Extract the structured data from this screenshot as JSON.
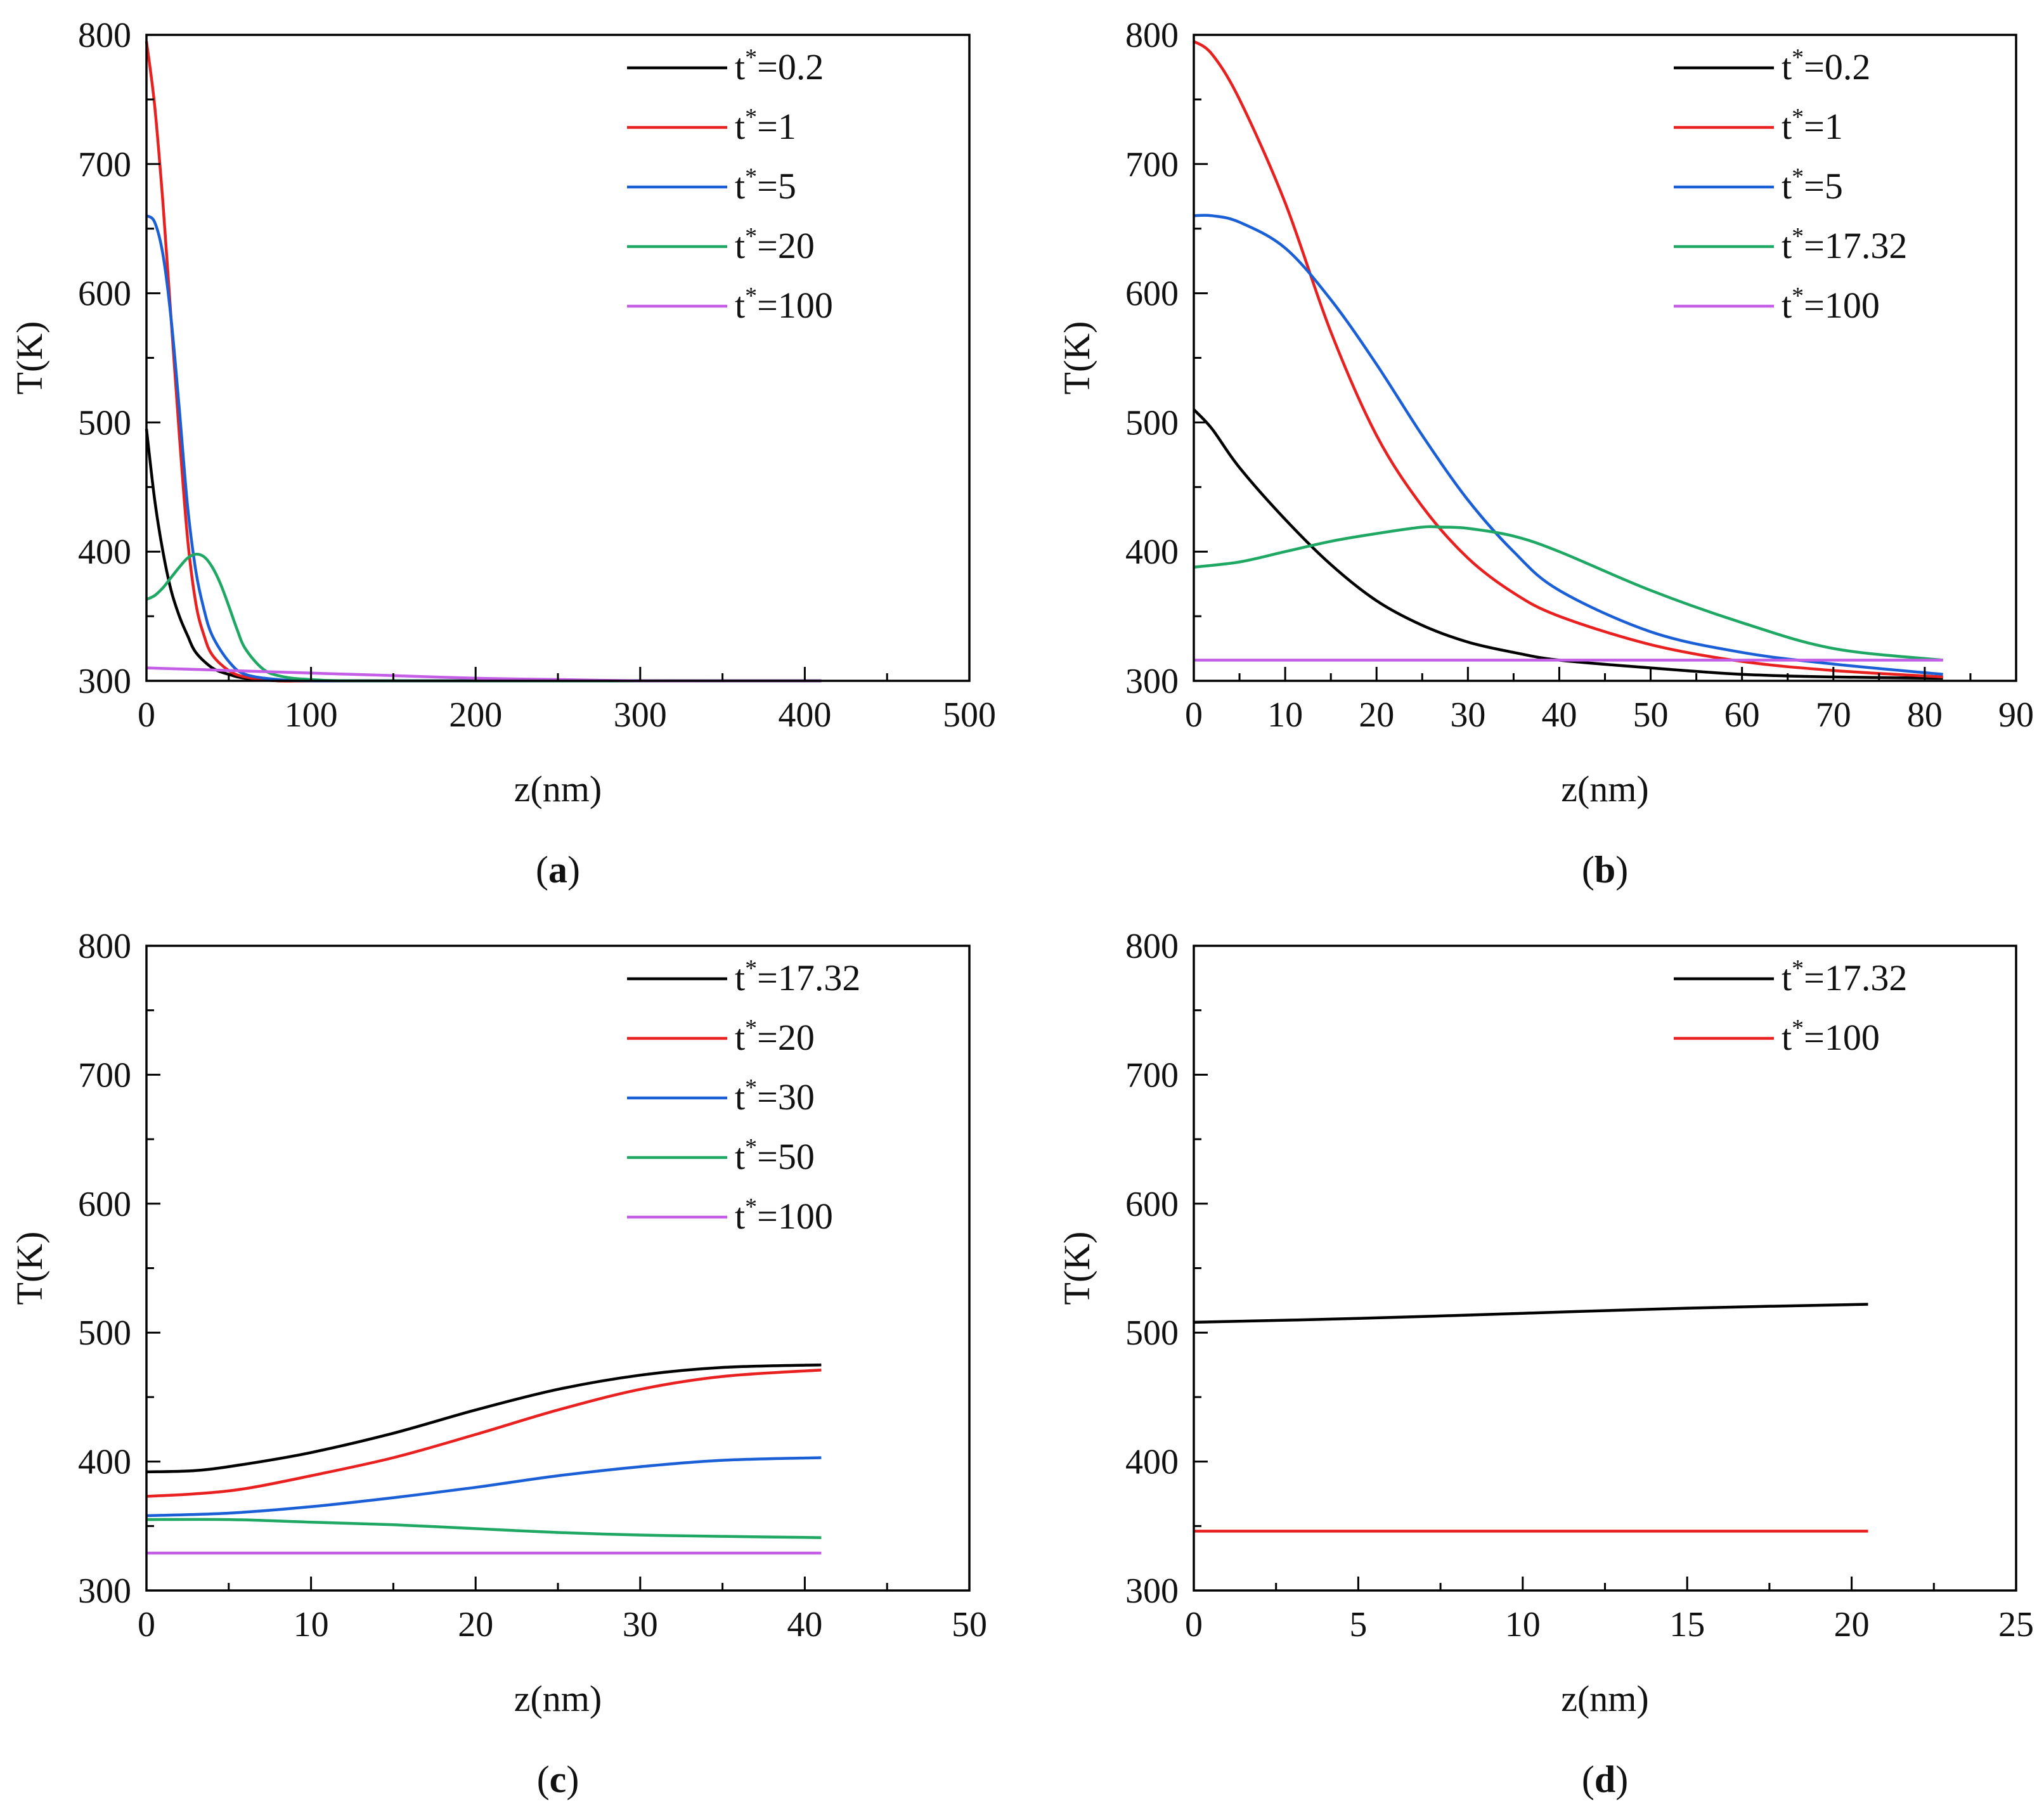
{
  "chart_data": [
    {
      "id": "a",
      "type": "line",
      "caption_open": "(",
      "caption_letter": "a",
      "caption_close": ")",
      "xlabel": "z(nm)",
      "ylabel": "T(K)",
      "xlim": [
        0,
        500
      ],
      "ylim": [
        300,
        800
      ],
      "xticks": [
        0,
        100,
        200,
        300,
        400,
        500
      ],
      "yticks": [
        300,
        400,
        500,
        600,
        700,
        800
      ],
      "legend_position": "top-right",
      "series": [
        {
          "name": "t*=0.2",
          "legend_base": "t",
          "legend_sup": "*",
          "legend_value": "=0.2",
          "color": "#000000",
          "x": [
            0,
            5,
            10,
            15,
            20,
            25,
            30,
            40,
            50,
            60,
            80,
            100,
            150,
            410
          ],
          "y": [
            495,
            440,
            400,
            370,
            350,
            335,
            322,
            310,
            305,
            302,
            300,
            300,
            300,
            300
          ]
        },
        {
          "name": "t*=1",
          "legend_base": "t",
          "legend_sup": "*",
          "legend_value": "=1",
          "color": "#e8201f",
          "x": [
            0,
            5,
            10,
            15,
            20,
            25,
            30,
            35,
            40,
            50,
            60,
            80,
            100,
            150,
            410
          ],
          "y": [
            795,
            745,
            670,
            580,
            490,
            410,
            360,
            335,
            320,
            308,
            303,
            300,
            300,
            300,
            300
          ]
        },
        {
          "name": "t*=5",
          "legend_base": "t",
          "legend_sup": "*",
          "legend_value": "=5",
          "color": "#1a5fd6",
          "x": [
            0,
            5,
            10,
            15,
            20,
            25,
            30,
            35,
            40,
            50,
            60,
            80,
            100,
            150,
            410
          ],
          "y": [
            660,
            655,
            630,
            580,
            510,
            435,
            385,
            355,
            335,
            315,
            305,
            301,
            300,
            300,
            300
          ]
        },
        {
          "name": "t*=20",
          "legend_base": "t",
          "legend_sup": "*",
          "legend_value": "=20",
          "color": "#1fa863",
          "x": [
            0,
            5,
            10,
            15,
            20,
            25,
            30,
            35,
            40,
            45,
            50,
            55,
            60,
            70,
            80,
            100,
            150,
            410
          ],
          "y": [
            363,
            366,
            372,
            380,
            388,
            395,
            398,
            396,
            388,
            375,
            358,
            340,
            325,
            310,
            304,
            301,
            300,
            300
          ]
        },
        {
          "name": "t*=100",
          "legend_base": "t",
          "legend_sup": "*",
          "legend_value": "=100",
          "color": "#c45ee6",
          "x": [
            0,
            50,
            100,
            150,
            200,
            250,
            300,
            350,
            410
          ],
          "y": [
            310,
            308,
            306,
            304,
            302,
            301,
            300,
            300,
            300
          ]
        }
      ]
    },
    {
      "id": "b",
      "type": "line",
      "caption_open": "(",
      "caption_letter": "b",
      "caption_close": ")",
      "xlabel": "z(nm)",
      "ylabel": "T(K)",
      "xlim": [
        0,
        90
      ],
      "ylim": [
        300,
        800
      ],
      "xticks": [
        0,
        10,
        20,
        30,
        40,
        50,
        60,
        70,
        80,
        90
      ],
      "yticks": [
        300,
        400,
        500,
        600,
        700,
        800
      ],
      "legend_position": "top-right",
      "series": [
        {
          "name": "t*=0.2",
          "legend_base": "t",
          "legend_sup": "*",
          "legend_value": "=0.2",
          "color": "#000000",
          "x": [
            0,
            2,
            5,
            10,
            15,
            20,
            25,
            30,
            35,
            40,
            50,
            60,
            70,
            82
          ],
          "y": [
            510,
            495,
            465,
            425,
            390,
            362,
            343,
            330,
            322,
            316,
            310,
            305,
            303,
            302
          ]
        },
        {
          "name": "t*=1",
          "legend_base": "t",
          "legend_sup": "*",
          "legend_value": "=1",
          "color": "#e8201f",
          "x": [
            0,
            2,
            5,
            10,
            15,
            20,
            25,
            30,
            35,
            40,
            50,
            60,
            70,
            82
          ],
          "y": [
            795,
            785,
            750,
            670,
            570,
            490,
            435,
            395,
            368,
            350,
            328,
            315,
            308,
            303
          ]
        },
        {
          "name": "t*=5",
          "legend_base": "t",
          "legend_sup": "*",
          "legend_value": "=5",
          "color": "#1a5fd6",
          "x": [
            0,
            2,
            5,
            10,
            15,
            20,
            25,
            30,
            35,
            40,
            50,
            60,
            70,
            82
          ],
          "y": [
            660,
            660,
            655,
            635,
            595,
            545,
            490,
            440,
            400,
            370,
            338,
            322,
            313,
            305
          ]
        },
        {
          "name": "t*=17.32",
          "legend_base": "t",
          "legend_sup": "*",
          "legend_value": "=17.32",
          "color": "#1fa863",
          "x": [
            0,
            5,
            10,
            15,
            20,
            25,
            27,
            30,
            35,
            40,
            50,
            60,
            70,
            82
          ],
          "y": [
            388,
            392,
            400,
            408,
            414,
            419,
            419,
            418,
            412,
            400,
            370,
            345,
            325,
            316
          ]
        },
        {
          "name": "t*=100",
          "legend_base": "t",
          "legend_sup": "*",
          "legend_value": "=100",
          "color": "#c45ee6",
          "x": [
            0,
            20,
            40,
            60,
            82
          ],
          "y": [
            316,
            316,
            316,
            316,
            316
          ]
        }
      ]
    },
    {
      "id": "c",
      "type": "line",
      "caption_open": "(",
      "caption_letter": "c",
      "caption_close": ")",
      "xlabel": "z(nm)",
      "ylabel": "T(K)",
      "xlim": [
        0,
        50
      ],
      "ylim": [
        300,
        800
      ],
      "xticks": [
        0,
        10,
        20,
        30,
        40,
        50
      ],
      "yticks": [
        300,
        400,
        500,
        600,
        700,
        800
      ],
      "legend_position": "top-right",
      "series": [
        {
          "name": "t*=17.32",
          "legend_base": "t",
          "legend_sup": "*",
          "legend_value": "=17.32",
          "color": "#000000",
          "x": [
            0,
            3,
            6,
            10,
            15,
            20,
            25,
            30,
            35,
            41
          ],
          "y": [
            392,
            393,
            398,
            407,
            422,
            440,
            456,
            467,
            473,
            475
          ]
        },
        {
          "name": "t*=20",
          "legend_base": "t",
          "legend_sup": "*",
          "legend_value": "=20",
          "color": "#e8201f",
          "x": [
            0,
            3,
            6,
            10,
            15,
            20,
            25,
            30,
            35,
            41
          ],
          "y": [
            373,
            375,
            379,
            389,
            403,
            421,
            440,
            456,
            466,
            471
          ]
        },
        {
          "name": "t*=30",
          "legend_base": "t",
          "legend_sup": "*",
          "legend_value": "=30",
          "color": "#1a5fd6",
          "x": [
            0,
            5,
            10,
            15,
            20,
            25,
            30,
            35,
            41
          ],
          "y": [
            358,
            360,
            365,
            372,
            380,
            389,
            396,
            401,
            403
          ]
        },
        {
          "name": "t*=50",
          "legend_base": "t",
          "legend_sup": "*",
          "legend_value": "=50",
          "color": "#1fa863",
          "x": [
            0,
            5,
            10,
            15,
            20,
            25,
            30,
            35,
            41
          ],
          "y": [
            355,
            355,
            353,
            351,
            348,
            345,
            343,
            342,
            341
          ]
        },
        {
          "name": "t*=100",
          "legend_base": "t",
          "legend_sup": "*",
          "legend_value": "=100",
          "color": "#c45ee6",
          "x": [
            0,
            10,
            20,
            30,
            41
          ],
          "y": [
            329,
            329,
            329,
            329,
            329
          ]
        }
      ]
    },
    {
      "id": "d",
      "type": "line",
      "caption_open": "(",
      "caption_letter": "d",
      "caption_close": ")",
      "xlabel": "z(nm)",
      "ylabel": "T(K)",
      "xlim": [
        0,
        25
      ],
      "ylim": [
        300,
        800
      ],
      "xticks": [
        0,
        5,
        10,
        15,
        20,
        25
      ],
      "yticks": [
        300,
        400,
        500,
        600,
        700,
        800
      ],
      "legend_position": "top-right",
      "series": [
        {
          "name": "t*=17.32",
          "legend_base": "t",
          "legend_sup": "*",
          "legend_value": "=17.32",
          "color": "#000000",
          "x": [
            0,
            5,
            10,
            15,
            20.5
          ],
          "y": [
            508,
            511,
            515,
            519,
            522
          ]
        },
        {
          "name": "t*=100",
          "legend_base": "t",
          "legend_sup": "*",
          "legend_value": "=100",
          "color": "#e8201f",
          "x": [
            0,
            5,
            10,
            15,
            20.5
          ],
          "y": [
            346,
            346,
            346,
            346,
            346
          ]
        }
      ]
    }
  ]
}
